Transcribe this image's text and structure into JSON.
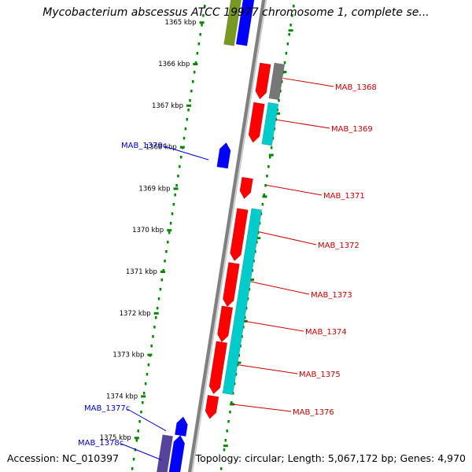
{
  "title": "Mycobacterium abscessus ATCC 19977 chromosome 1, complete se...",
  "footer": {
    "accession": "Accession: NC_010397",
    "summary": "Topology: circular; Length: 5,067,172 bp; Genes: 4,970"
  },
  "colors": {
    "backbone": "#808080",
    "ticks": "#008800",
    "tick_label": "#000000",
    "forward_label": "#cc0000",
    "reverse_label": "#0000cc",
    "red_cds": "#ff0000",
    "blue_cds": "#0000ff",
    "cyan_cog": "#00cccc",
    "gray_cog": "#777777",
    "olive_cog": "#779922",
    "purple_cog": "#554499"
  },
  "map": {
    "scale_labels": [
      "1365 kbp",
      "1366 kbp",
      "1367 kbp",
      "1368 kbp",
      "1369 kbp",
      "1370 kbp",
      "1371 kbp",
      "1372 kbp",
      "1373 kbp",
      "1374 kbp",
      "1375 kbp"
    ],
    "genes": [
      {
        "name": "MAB_1368",
        "strand": "forward",
        "start_kbp": 1366.0,
        "end_kbp": 1366.85
      },
      {
        "name": "MAB_1369",
        "strand": "forward",
        "start_kbp": 1366.95,
        "end_kbp": 1367.9
      },
      {
        "name": "MAB_1370c",
        "strand": "reverse",
        "start_kbp": 1367.9,
        "end_kbp": 1368.5
      },
      {
        "name": "MAB_1371",
        "strand": "forward",
        "start_kbp": 1368.75,
        "end_kbp": 1369.25
      },
      {
        "name": "MAB_1372",
        "strand": "forward",
        "start_kbp": 1369.5,
        "end_kbp": 1370.75
      },
      {
        "name": "MAB_1373",
        "strand": "forward",
        "start_kbp": 1370.8,
        "end_kbp": 1371.85
      },
      {
        "name": "MAB_1374",
        "strand": "forward",
        "start_kbp": 1371.85,
        "end_kbp": 1372.7
      },
      {
        "name": "MAB_1375",
        "strand": "forward",
        "start_kbp": 1372.7,
        "end_kbp": 1373.95
      },
      {
        "name": "MAB_1376",
        "strand": "forward",
        "start_kbp": 1374.0,
        "end_kbp": 1374.55
      },
      {
        "name": "MAB_1377c",
        "strand": "reverse",
        "start_kbp": 1374.5,
        "end_kbp": 1374.95
      },
      {
        "name": "MAB_1378c",
        "strand": "reverse",
        "start_kbp": 1374.95,
        "end_kbp": 1375.9
      }
    ]
  }
}
